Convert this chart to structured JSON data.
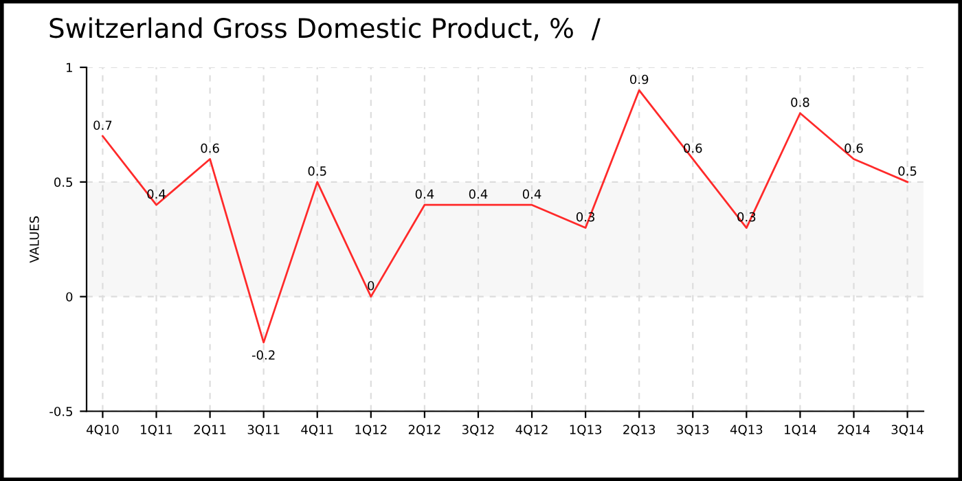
{
  "chart_data": {
    "type": "line",
    "title": "Switzerland Gross Domestic Product, %  /",
    "ylabel": "VALUES",
    "categories": [
      "4Q10",
      "1Q11",
      "2Q11",
      "3Q11",
      "4Q11",
      "1Q12",
      "2Q12",
      "3Q12",
      "4Q12",
      "1Q13",
      "2Q13",
      "3Q13",
      "4Q13",
      "1Q14",
      "2Q14",
      "3Q14"
    ],
    "values": [
      0.7,
      0.4,
      0.6,
      -0.2,
      0.5,
      0,
      0.4,
      0.4,
      0.4,
      0.3,
      0.9,
      0.6,
      0.3,
      0.8,
      0.6,
      0.5
    ],
    "color": "#ff2a2a",
    "ylim": [
      -0.5,
      1
    ],
    "yticks": [
      -0.5,
      0,
      0.5,
      1
    ],
    "bands": [
      {
        "axis": "y",
        "from": 0,
        "to": 0.5,
        "color": "#f7f7f7"
      }
    ],
    "grid": true,
    "data_labels": true,
    "marker": "none",
    "line_style": "solid"
  }
}
